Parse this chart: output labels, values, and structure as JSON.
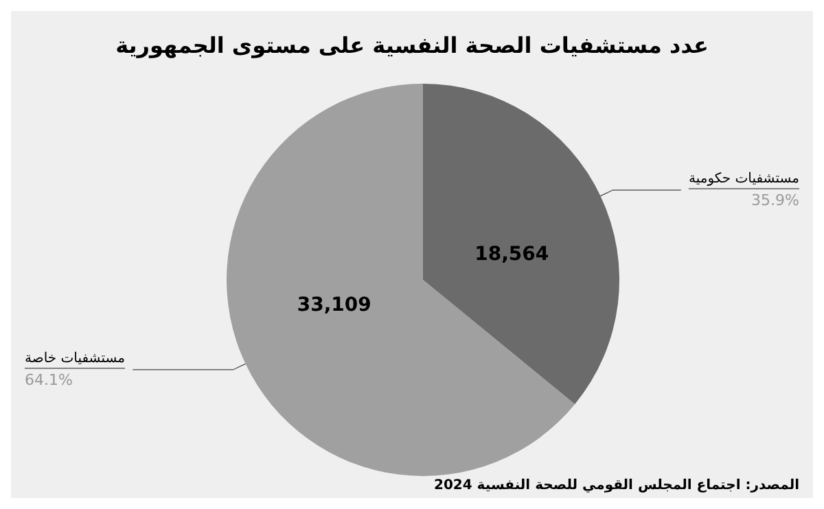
{
  "chart_data": {
    "type": "pie",
    "title": "عدد مستشفيات الصحة النفسية على مستوى الجمهورية",
    "categories": [
      "مستشفيات حكومية",
      "مستشفيات خاصة"
    ],
    "values": [
      18564,
      33109
    ],
    "colors": [
      "#6b6b6b",
      "#a0a0a0"
    ],
    "value_labels": [
      "18,564",
      "33,109"
    ],
    "annotations": [
      "35.9%",
      "64.1%",
      "المصدر: اجتماع المجلس القومي للصحة النفسية 2024"
    ],
    "legend": false
  }
}
